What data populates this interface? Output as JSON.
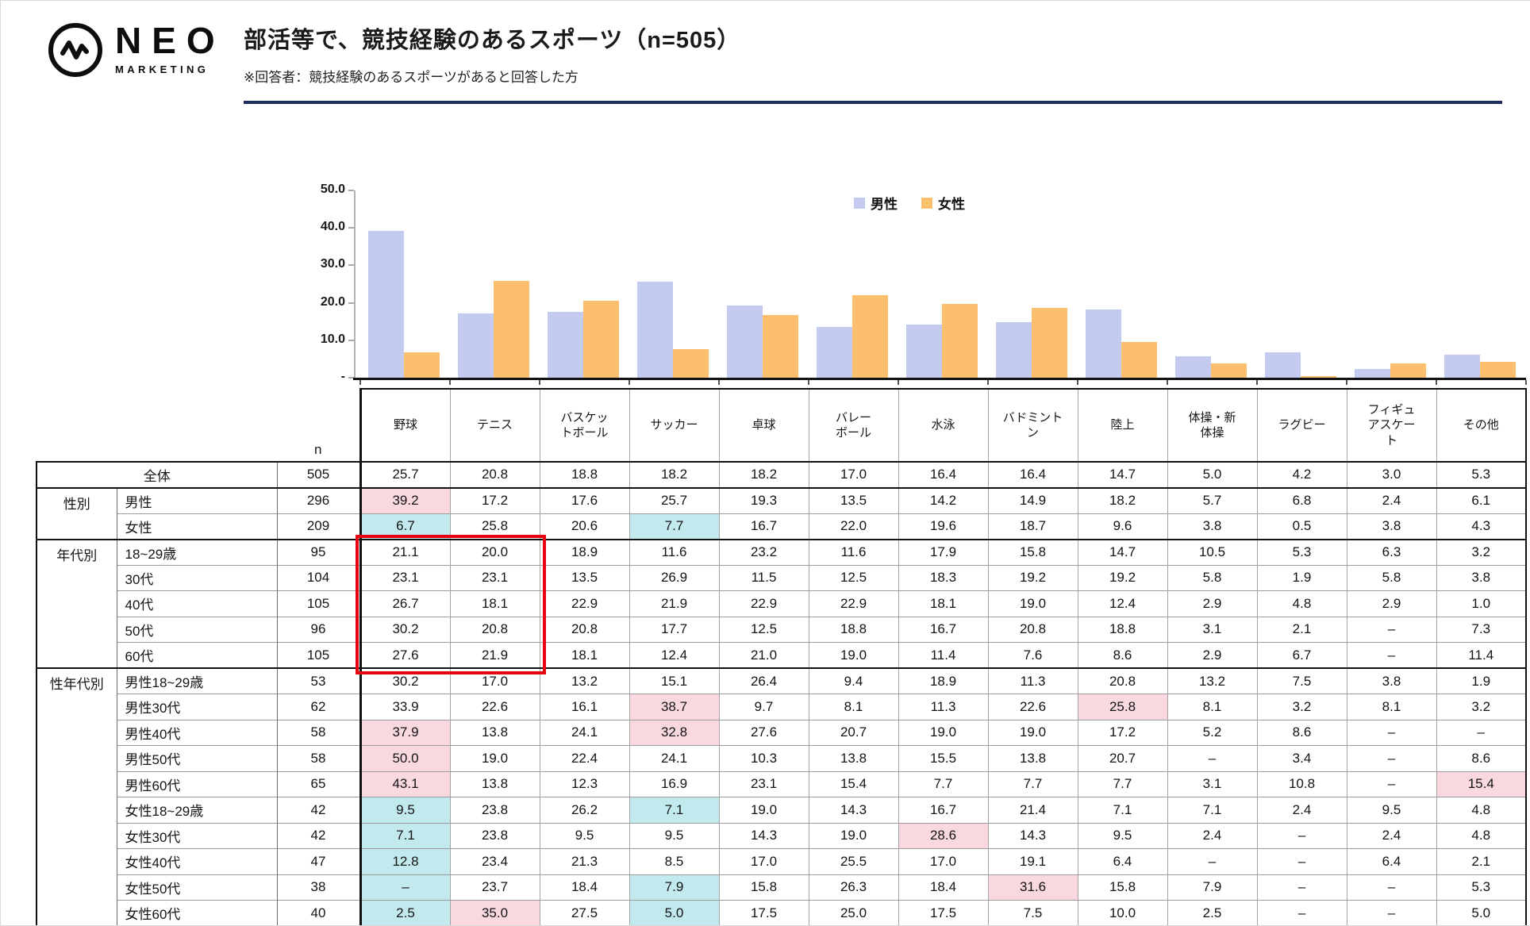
{
  "header": {
    "logo_name": "NEO",
    "logo_sub": "MARKETING",
    "title": "部活等で、競技経験のあるスポーツ（n=505）",
    "note": "※回答者：競技経験のあるスポーツがあると回答した方",
    "rule_color": "#1f2d5e"
  },
  "chart_data": {
    "type": "bar",
    "title": "",
    "categories": [
      "野球",
      "テニス",
      "バスケットボール",
      "サッカー",
      "卓球",
      "バレーボール",
      "水泳",
      "バドミントン",
      "陸上",
      "体操・新体操",
      "ラグビー",
      "フィギュアスケート",
      "その他"
    ],
    "series": [
      {
        "name": "男性",
        "color": "#c4cbf0",
        "values": [
          39.2,
          17.2,
          17.6,
          25.7,
          19.3,
          13.5,
          14.2,
          14.9,
          18.2,
          5.7,
          6.8,
          2.4,
          6.1
        ]
      },
      {
        "name": "女性",
        "color": "#fbbf6e",
        "values": [
          6.7,
          25.8,
          20.6,
          7.7,
          16.7,
          22.0,
          19.6,
          18.7,
          9.6,
          3.8,
          0.5,
          3.8,
          4.3
        ]
      }
    ],
    "y_ticks": [
      "50.0",
      "40.0",
      "30.0",
      "20.0",
      "10.0",
      "-"
    ],
    "ylim": [
      0,
      50
    ],
    "xlabel": "",
    "ylabel": "",
    "grid": false,
    "legend_position": "top-right"
  },
  "table": {
    "n_header": "n",
    "columns": [
      "野球",
      "テニス",
      "バスケッ\nトボール",
      "サッカー",
      "卓球",
      "バレー\nボール",
      "水泳",
      "バドミント\nン",
      "陸上",
      "体操・新\n体操",
      "ラグビー",
      "フィギュ\nアスケー\nト",
      "その他"
    ],
    "highlight_colors": {
      "pink": "#f9d8e0",
      "cyan": "#c2e9ed"
    },
    "red_box": {
      "rows": [
        3,
        7
      ],
      "cols": [
        0,
        1
      ],
      "color": "#e60012"
    },
    "rows": [
      {
        "label": "全体",
        "label_colspan": 2,
        "n": "505",
        "section_start": true,
        "values": [
          "25.7",
          "20.8",
          "18.8",
          "18.2",
          "18.2",
          "17.0",
          "16.4",
          "16.4",
          "14.7",
          "5.0",
          "4.2",
          "3.0",
          "5.3"
        ]
      },
      {
        "group": "性別",
        "group_span": 2,
        "label": "男性",
        "n": "296",
        "section_start": true,
        "pink": [
          0
        ],
        "values": [
          "39.2",
          "17.2",
          "17.6",
          "25.7",
          "19.3",
          "13.5",
          "14.2",
          "14.9",
          "18.2",
          "5.7",
          "6.8",
          "2.4",
          "6.1"
        ]
      },
      {
        "label": "女性",
        "n": "209",
        "cyan": [
          0,
          3
        ],
        "values": [
          "6.7",
          "25.8",
          "20.6",
          "7.7",
          "16.7",
          "22.0",
          "19.6",
          "18.7",
          "9.6",
          "3.8",
          "0.5",
          "3.8",
          "4.3"
        ]
      },
      {
        "group": "年代別",
        "group_span": 5,
        "label": "18~29歳",
        "n": "95",
        "section_start": true,
        "values": [
          "21.1",
          "20.0",
          "18.9",
          "11.6",
          "23.2",
          "11.6",
          "17.9",
          "15.8",
          "14.7",
          "10.5",
          "5.3",
          "6.3",
          "3.2"
        ]
      },
      {
        "label": "30代",
        "n": "104",
        "values": [
          "23.1",
          "23.1",
          "13.5",
          "26.9",
          "11.5",
          "12.5",
          "18.3",
          "19.2",
          "19.2",
          "5.8",
          "1.9",
          "5.8",
          "3.8"
        ]
      },
      {
        "label": "40代",
        "n": "105",
        "values": [
          "26.7",
          "18.1",
          "22.9",
          "21.9",
          "22.9",
          "22.9",
          "18.1",
          "19.0",
          "12.4",
          "2.9",
          "4.8",
          "2.9",
          "1.0"
        ]
      },
      {
        "label": "50代",
        "n": "96",
        "values": [
          "30.2",
          "20.8",
          "20.8",
          "17.7",
          "12.5",
          "18.8",
          "16.7",
          "20.8",
          "18.8",
          "3.1",
          "2.1",
          "–",
          "7.3"
        ]
      },
      {
        "label": "60代",
        "n": "105",
        "values": [
          "27.6",
          "21.9",
          "18.1",
          "12.4",
          "21.0",
          "19.0",
          "11.4",
          "7.6",
          "8.6",
          "2.9",
          "6.7",
          "–",
          "11.4"
        ]
      },
      {
        "group": "性年代別",
        "group_span": 10,
        "label": "男性18~29歳",
        "n": "53",
        "section_start": true,
        "values": [
          "30.2",
          "17.0",
          "13.2",
          "15.1",
          "26.4",
          "9.4",
          "18.9",
          "11.3",
          "20.8",
          "13.2",
          "7.5",
          "3.8",
          "1.9"
        ]
      },
      {
        "label": "男性30代",
        "n": "62",
        "pink": [
          3,
          8
        ],
        "values": [
          "33.9",
          "22.6",
          "16.1",
          "38.7",
          "9.7",
          "8.1",
          "11.3",
          "22.6",
          "25.8",
          "8.1",
          "3.2",
          "8.1",
          "3.2"
        ]
      },
      {
        "label": "男性40代",
        "n": "58",
        "pink": [
          0,
          3
        ],
        "values": [
          "37.9",
          "13.8",
          "24.1",
          "32.8",
          "27.6",
          "20.7",
          "19.0",
          "19.0",
          "17.2",
          "5.2",
          "8.6",
          "–",
          "–"
        ]
      },
      {
        "label": "男性50代",
        "n": "58",
        "pink": [
          0
        ],
        "values": [
          "50.0",
          "19.0",
          "22.4",
          "24.1",
          "10.3",
          "13.8",
          "15.5",
          "13.8",
          "20.7",
          "–",
          "3.4",
          "–",
          "8.6"
        ]
      },
      {
        "label": "男性60代",
        "n": "65",
        "pink": [
          0,
          12
        ],
        "values": [
          "43.1",
          "13.8",
          "12.3",
          "16.9",
          "23.1",
          "15.4",
          "7.7",
          "7.7",
          "7.7",
          "3.1",
          "10.8",
          "–",
          "15.4"
        ]
      },
      {
        "label": "女性18~29歳",
        "n": "42",
        "cyan": [
          0,
          3
        ],
        "values": [
          "9.5",
          "23.8",
          "26.2",
          "7.1",
          "19.0",
          "14.3",
          "16.7",
          "21.4",
          "7.1",
          "7.1",
          "2.4",
          "9.5",
          "4.8"
        ]
      },
      {
        "label": "女性30代",
        "n": "42",
        "cyan": [
          0
        ],
        "pink": [
          6
        ],
        "values": [
          "7.1",
          "23.8",
          "9.5",
          "9.5",
          "14.3",
          "19.0",
          "28.6",
          "14.3",
          "9.5",
          "2.4",
          "–",
          "2.4",
          "4.8"
        ]
      },
      {
        "label": "女性40代",
        "n": "47",
        "cyan": [
          0
        ],
        "values": [
          "12.8",
          "23.4",
          "21.3",
          "8.5",
          "17.0",
          "25.5",
          "17.0",
          "19.1",
          "6.4",
          "–",
          "–",
          "6.4",
          "2.1"
        ]
      },
      {
        "label": "女性50代",
        "n": "38",
        "cyan": [
          0,
          3
        ],
        "pink": [
          7
        ],
        "values": [
          "–",
          "23.7",
          "18.4",
          "7.9",
          "15.8",
          "26.3",
          "18.4",
          "31.6",
          "15.8",
          "7.9",
          "–",
          "–",
          "5.3"
        ]
      },
      {
        "label": "女性60代",
        "n": "40",
        "cyan": [
          0,
          3
        ],
        "pink": [
          1
        ],
        "values": [
          "2.5",
          "35.0",
          "27.5",
          "5.0",
          "17.5",
          "25.0",
          "17.5",
          "7.5",
          "10.0",
          "2.5",
          "–",
          "–",
          "5.0"
        ]
      }
    ]
  }
}
